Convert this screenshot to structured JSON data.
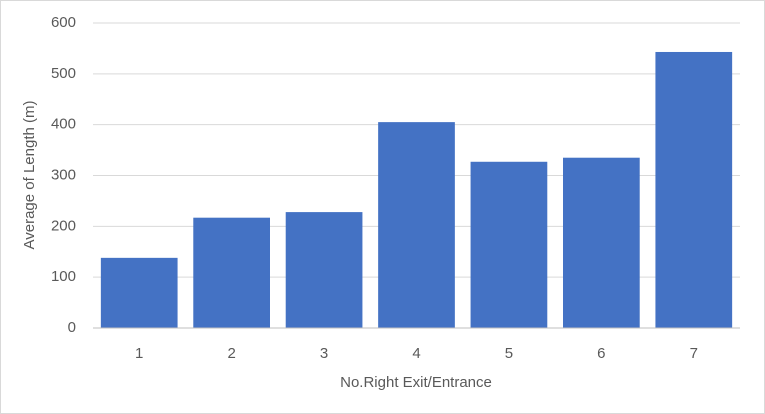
{
  "chart_data": {
    "type": "bar",
    "x_label": "No.Right Exit/Entrance",
    "y_label": "Average of Length (m)",
    "categories": [
      "1",
      "2",
      "3",
      "4",
      "5",
      "6",
      "7"
    ],
    "values": [
      138,
      217,
      228,
      405,
      327,
      335,
      543
    ],
    "color": "#4472c4",
    "ylim": [
      0,
      600
    ],
    "yticks": [
      0,
      100,
      200,
      300,
      400,
      500,
      600
    ],
    "grid": true
  }
}
